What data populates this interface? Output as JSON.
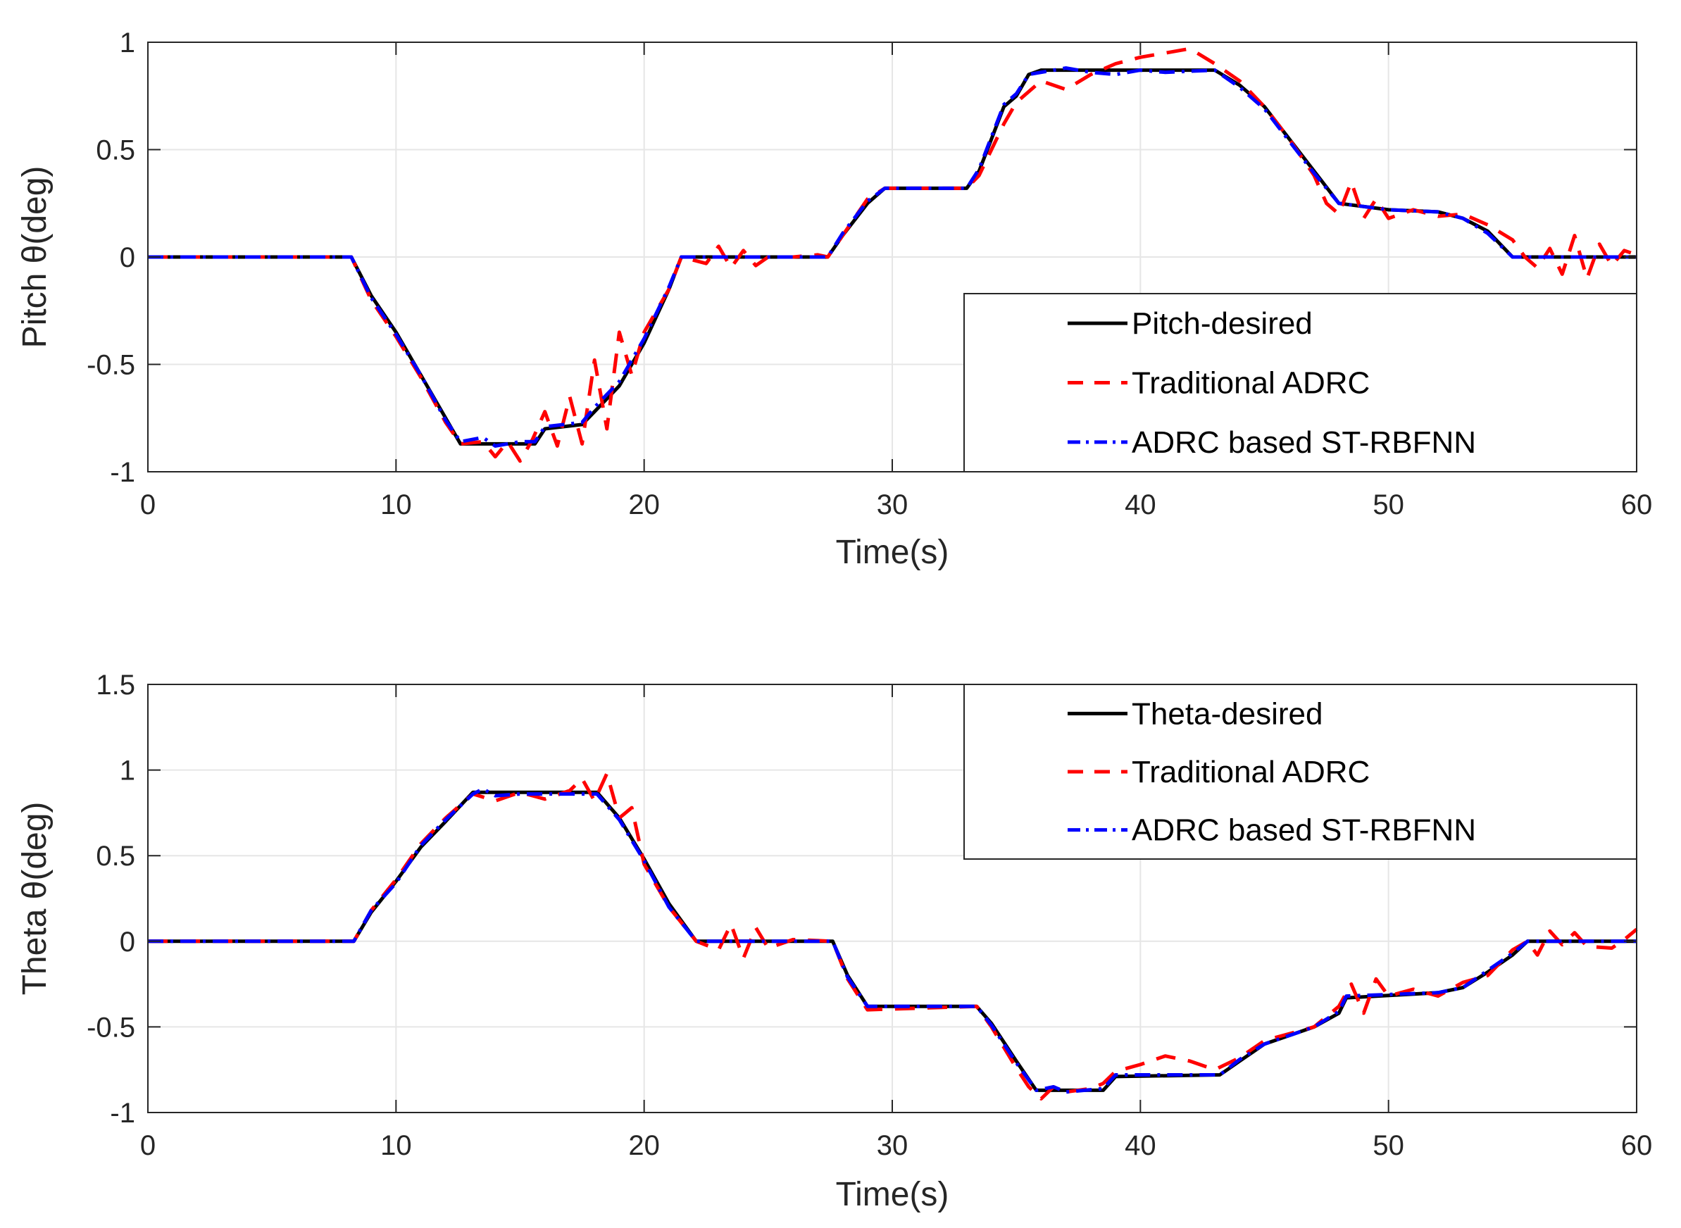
{
  "colors": {
    "desired": "#000000",
    "traditional": "#ff0000",
    "stRbfnn": "#0000ff",
    "grid": "#e6e6e6",
    "axis": "#262626"
  },
  "chart_data": [
    {
      "type": "line",
      "title": "",
      "xlabel": "Time(s)",
      "ylabel": "Pitch θ(deg)",
      "xlim": [
        0,
        60
      ],
      "ylim": [
        -1,
        1
      ],
      "xticks": [
        0,
        10,
        20,
        30,
        40,
        50,
        60
      ],
      "yticks": [
        1,
        0.5,
        0,
        -0.5,
        -1
      ],
      "ytick_labels": [
        "1",
        "0.5",
        "0",
        "-0.5",
        "-1"
      ],
      "grid": true,
      "legend_position": "lower-right",
      "series": [
        {
          "name": "Pitch-desired",
          "style": "solid",
          "color": "#000000",
          "x": [
            0,
            8.2,
            9,
            10,
            11,
            12,
            12.6,
            15.6,
            16,
            17.5,
            18,
            19,
            20,
            21,
            21.5,
            27.4,
            28,
            29,
            29.7,
            33,
            33.5,
            34,
            34.5,
            35,
            35.5,
            36,
            43,
            44,
            45,
            46,
            47,
            48,
            50,
            52,
            53,
            54,
            55,
            60
          ],
          "y": [
            0,
            0,
            -0.18,
            -0.35,
            -0.55,
            -0.75,
            -0.87,
            -0.87,
            -0.8,
            -0.78,
            -0.72,
            -0.6,
            -0.4,
            -0.15,
            0,
            0,
            0.1,
            0.25,
            0.32,
            0.32,
            0.4,
            0.55,
            0.7,
            0.75,
            0.85,
            0.87,
            0.87,
            0.8,
            0.7,
            0.55,
            0.4,
            0.25,
            0.22,
            0.21,
            0.18,
            0.12,
            0,
            0
          ]
        },
        {
          "name": "Traditional ADRC",
          "style": "dashed",
          "color": "#ff0000",
          "x": [
            0,
            8.2,
            9,
            10,
            11,
            12,
            12.6,
            13.5,
            14,
            14.5,
            15,
            15.5,
            16,
            16.5,
            17,
            17.5,
            18,
            18.5,
            19,
            19.5,
            20,
            21,
            21.5,
            22.5,
            23,
            23.5,
            24,
            24.5,
            25,
            26,
            27,
            27.4,
            28,
            29,
            29.7,
            33,
            33.5,
            34,
            34.5,
            35,
            35.5,
            36,
            37,
            38,
            39,
            40,
            41,
            42,
            43,
            44,
            45,
            46,
            47,
            47.5,
            48,
            48.5,
            49,
            49.5,
            50,
            51,
            52,
            53,
            54,
            55,
            55.5,
            56,
            56.5,
            57,
            57.5,
            58,
            58.5,
            59,
            59.5,
            60
          ],
          "y": [
            0,
            0,
            -0.2,
            -0.37,
            -0.56,
            -0.77,
            -0.87,
            -0.86,
            -0.93,
            -0.86,
            -0.95,
            -0.85,
            -0.72,
            -0.88,
            -0.65,
            -0.87,
            -0.48,
            -0.8,
            -0.35,
            -0.55,
            -0.35,
            -0.15,
            0,
            -0.03,
            0.05,
            -0.05,
            0.03,
            -0.04,
            0,
            0,
            0.01,
            0,
            0.1,
            0.27,
            0.32,
            0.32,
            0.38,
            0.5,
            0.62,
            0.72,
            0.77,
            0.82,
            0.78,
            0.85,
            0.9,
            0.93,
            0.95,
            0.97,
            0.9,
            0.82,
            0.7,
            0.55,
            0.38,
            0.25,
            0.2,
            0.35,
            0.18,
            0.27,
            0.18,
            0.22,
            0.19,
            0.2,
            0.15,
            0.08,
            0,
            -0.05,
            0.04,
            -0.08,
            0.1,
            -0.1,
            0.06,
            -0.04,
            0.03,
            0.01
          ]
        },
        {
          "name": "ADRC based ST-RBFNN",
          "style": "dashdot",
          "color": "#0000ff",
          "x": [
            0,
            8.2,
            9,
            10,
            11,
            12,
            12.6,
            13.5,
            14,
            15,
            15.6,
            16,
            17.5,
            18,
            19,
            20,
            21,
            21.5,
            27.4,
            28,
            29,
            29.7,
            33,
            33.5,
            34,
            34.5,
            35,
            35.5,
            36,
            37,
            38,
            39,
            40,
            41,
            43,
            44,
            45,
            46,
            47,
            48,
            50,
            52,
            53,
            54,
            55,
            60
          ],
          "y": [
            0,
            0,
            -0.19,
            -0.36,
            -0.55,
            -0.76,
            -0.86,
            -0.84,
            -0.88,
            -0.86,
            -0.86,
            -0.79,
            -0.77,
            -0.7,
            -0.58,
            -0.38,
            -0.14,
            0,
            0,
            0.11,
            0.26,
            0.32,
            0.32,
            0.41,
            0.56,
            0.71,
            0.76,
            0.85,
            0.86,
            0.88,
            0.86,
            0.85,
            0.87,
            0.86,
            0.87,
            0.79,
            0.69,
            0.54,
            0.39,
            0.25,
            0.22,
            0.21,
            0.18,
            0.11,
            0,
            0
          ]
        }
      ]
    },
    {
      "type": "line",
      "title": "",
      "xlabel": "Time(s)",
      "ylabel": "Theta θ(deg)",
      "xlim": [
        0,
        60
      ],
      "ylim": [
        -1,
        1.5
      ],
      "xticks": [
        0,
        10,
        20,
        30,
        40,
        50,
        60
      ],
      "yticks": [
        1.5,
        1,
        0.5,
        0,
        -0.5,
        -1
      ],
      "ytick_labels": [
        "1.5",
        "1",
        "0.5",
        "0",
        "-0.5",
        "-1"
      ],
      "grid": true,
      "legend_position": "upper-right",
      "series": [
        {
          "name": "Theta-desired",
          "style": "solid",
          "color": "#000000",
          "x": [
            0,
            8.3,
            9,
            10,
            11,
            12,
            13.1,
            18.1,
            19,
            20,
            21,
            22.1,
            27.6,
            28.2,
            29,
            33.4,
            34,
            35,
            35.8,
            38.5,
            39,
            43.2,
            44,
            45,
            46,
            47,
            48,
            48.3,
            52,
            53,
            54,
            55,
            55.6,
            60
          ],
          "y": [
            0,
            0,
            0.17,
            0.35,
            0.55,
            0.7,
            0.87,
            0.87,
            0.72,
            0.48,
            0.22,
            0,
            0,
            -0.2,
            -0.38,
            -0.38,
            -0.48,
            -0.7,
            -0.87,
            -0.87,
            -0.79,
            -0.78,
            -0.7,
            -0.6,
            -0.55,
            -0.5,
            -0.42,
            -0.33,
            -0.3,
            -0.27,
            -0.18,
            -0.08,
            0,
            0
          ]
        },
        {
          "name": "Traditional ADRC",
          "style": "dashed",
          "color": "#ff0000",
          "x": [
            0,
            8.3,
            9,
            10,
            11,
            12,
            13.1,
            14,
            15,
            16,
            17,
            17.5,
            18,
            18.5,
            19,
            19.5,
            20,
            21,
            22.1,
            23,
            23.5,
            24,
            24.5,
            25,
            26,
            27.6,
            28.2,
            29,
            33.4,
            34,
            35,
            35.5,
            36,
            36.5,
            37,
            38,
            38.5,
            39,
            40,
            41,
            42,
            43,
            44,
            45,
            46,
            47,
            48,
            48.5,
            49,
            49.5,
            50,
            51,
            52,
            53,
            54,
            55,
            55.6,
            56,
            56.5,
            57,
            57.5,
            58,
            59,
            59.5,
            60
          ],
          "y": [
            0,
            0,
            0.18,
            0.36,
            0.57,
            0.72,
            0.86,
            0.82,
            0.87,
            0.83,
            0.88,
            0.95,
            0.82,
            0.98,
            0.72,
            0.78,
            0.45,
            0.2,
            0,
            -0.05,
            0.1,
            -0.1,
            0.08,
            -0.04,
            0.01,
            0,
            -0.22,
            -0.4,
            -0.38,
            -0.5,
            -0.74,
            -0.85,
            -0.92,
            -0.85,
            -0.88,
            -0.86,
            -0.83,
            -0.76,
            -0.72,
            -0.67,
            -0.7,
            -0.75,
            -0.68,
            -0.58,
            -0.54,
            -0.5,
            -0.38,
            -0.25,
            -0.42,
            -0.22,
            -0.32,
            -0.28,
            -0.32,
            -0.24,
            -0.2,
            -0.05,
            0,
            -0.08,
            0.06,
            -0.02,
            0.05,
            -0.03,
            -0.04,
            0.01,
            0.07
          ]
        },
        {
          "name": "ADRC based ST-RBFNN",
          "style": "dashdot",
          "color": "#0000ff",
          "x": [
            0,
            8.3,
            9,
            10,
            11,
            12,
            13.1,
            13.5,
            14,
            15,
            18.1,
            19,
            20,
            21,
            22.1,
            27.6,
            28.2,
            29,
            33.4,
            34,
            35,
            35.8,
            36.5,
            37,
            38.5,
            39,
            43.2,
            44,
            45,
            46,
            47,
            48,
            48.3,
            52,
            53,
            54,
            55,
            55.6,
            60
          ],
          "y": [
            0,
            0,
            0.18,
            0.34,
            0.56,
            0.71,
            0.86,
            0.89,
            0.85,
            0.86,
            0.86,
            0.71,
            0.47,
            0.2,
            0,
            0,
            -0.21,
            -0.38,
            -0.38,
            -0.49,
            -0.71,
            -0.87,
            -0.85,
            -0.88,
            -0.86,
            -0.78,
            -0.78,
            -0.69,
            -0.6,
            -0.55,
            -0.5,
            -0.41,
            -0.32,
            -0.3,
            -0.27,
            -0.17,
            -0.07,
            0,
            0
          ]
        }
      ]
    }
  ]
}
